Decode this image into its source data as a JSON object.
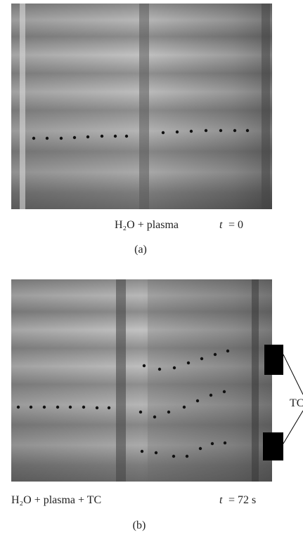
{
  "panels": [
    {
      "caption": "H₂O + plasma",
      "time_var": "t",
      "time_value": "= 0",
      "label": "(a)"
    },
    {
      "caption": "H₂O + plasma + TC",
      "time_var": "t",
      "time_value": "= 72 s",
      "label": "(b)"
    }
  ],
  "annotation": "TC"
}
